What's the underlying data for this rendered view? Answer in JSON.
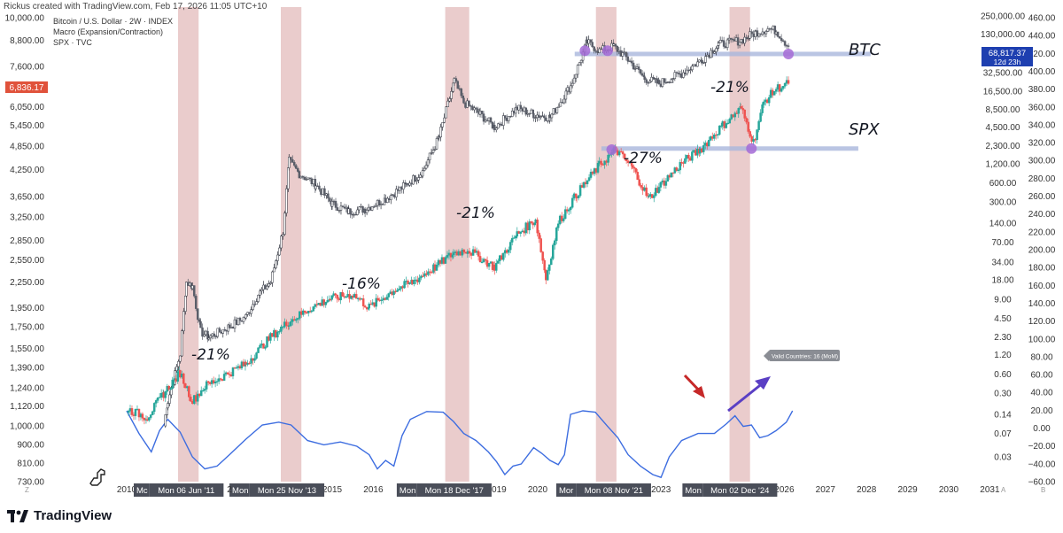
{
  "header": {
    "created_by": "Rickus created with TradingView.com, Feb 17, 2026 11:05 UTC+10"
  },
  "legend": {
    "line1": "Bitcoin / U.S. Dollar · 2W · INDEX",
    "line2": "Macro (Expansion/Contraction)",
    "line3": "SPX · TVC"
  },
  "chart_data": {
    "type": "line",
    "title": "",
    "axes": {
      "left": {
        "scale": "log",
        "ticks": [
          "10,000.00",
          "8,800.00",
          "7,600.00",
          "6,050.00",
          "5,450.00",
          "4,850.00",
          "4,250.00",
          "3,650.00",
          "3,250.00",
          "2,850.00",
          "2,550.00",
          "2,250.00",
          "1,950.00",
          "1,750.00",
          "1,550.00",
          "1,390.00",
          "1,240.00",
          "1,120.00",
          "1,000.00",
          "900.00",
          "810.00",
          "730.00"
        ],
        "current_value_label": "6,836.17"
      },
      "right_btc": {
        "scale": "log",
        "ticks": [
          "250,000.00",
          "130,000.00",
          "32,500.00",
          "16,500.00",
          "8,500.00",
          "4,500.00",
          "2,300.00",
          "1,200.00",
          "600.00",
          "300.00",
          "140.00",
          "70.00",
          "34.00",
          "18.00",
          "9.00",
          "4.50",
          "2.30",
          "1.20",
          "0.60",
          "0.30",
          "0.14",
          "0.07",
          "0.03"
        ],
        "current_value_label": "68,817.37",
        "countdown_label": "12d 23h"
      },
      "right_macro": {
        "ticks": [
          "460.00",
          "440.00",
          "420.00",
          "400.00",
          "380.00",
          "360.00",
          "340.00",
          "320.00",
          "300.00",
          "280.00",
          "260.00",
          "240.00",
          "220.00",
          "200.00",
          "180.00",
          "160.00",
          "140.00",
          "120.00",
          "100.00",
          "80.00",
          "60.00",
          "40.00",
          "20.00",
          "0.00",
          "−20.00",
          "−40.00",
          "−60.00"
        ]
      },
      "x": {
        "ticks": [
          "2010",
          "2015",
          "2016",
          "2019",
          "2020",
          "2023",
          "2026",
          "2027",
          "2028",
          "2029",
          "2030",
          "2031"
        ],
        "highlighted_dates": [
          "Mon 06 Jun '11",
          "Mon 25 Nov '13",
          "Mon 18 Dec '17",
          "Mon 08 Nov '21",
          "Mon 02 Dec '24"
        ],
        "truncated_prefixes": [
          "Mc",
          "Mon",
          "Mon",
          "Mor",
          "Mon"
        ],
        "truncated_tail": "2"
      }
    },
    "contraction_bands": [
      {
        "from": "2011-04",
        "to": "2011-10"
      },
      {
        "from": "2013-10",
        "to": "2014-04"
      },
      {
        "from": "2017-10",
        "to": "2018-05"
      },
      {
        "from": "2021-06",
        "to": "2021-12"
      },
      {
        "from": "2024-09",
        "to": "2025-03"
      }
    ],
    "series": [
      {
        "name": "BTC",
        "color": "#2a2e39",
        "kind": "candles",
        "points": [
          [
            2010.9,
            1000
          ],
          [
            2011.0,
            1150
          ],
          [
            2011.3,
            1500
          ],
          [
            2011.45,
            2250
          ],
          [
            2011.6,
            2200
          ],
          [
            2011.8,
            1700
          ],
          [
            2012.0,
            1650
          ],
          [
            2012.5,
            1750
          ],
          [
            2012.9,
            1850
          ],
          [
            2013.2,
            2100
          ],
          [
            2013.5,
            2250
          ],
          [
            2013.8,
            3000
          ],
          [
            2013.95,
            4450
          ],
          [
            2014.2,
            4150
          ],
          [
            2014.6,
            3900
          ],
          [
            2015.0,
            3500
          ],
          [
            2015.4,
            3350
          ],
          [
            2015.8,
            3400
          ],
          [
            2016.3,
            3600
          ],
          [
            2016.8,
            3900
          ],
          [
            2017.2,
            4200
          ],
          [
            2017.6,
            5100
          ],
          [
            2017.97,
            7000
          ],
          [
            2018.2,
            6200
          ],
          [
            2018.6,
            5800
          ],
          [
            2018.95,
            5400
          ],
          [
            2019.5,
            6000
          ],
          [
            2019.9,
            5800
          ],
          [
            2020.3,
            5700
          ],
          [
            2020.8,
            6800
          ],
          [
            2021.2,
            8700
          ],
          [
            2021.5,
            8300
          ],
          [
            2021.85,
            8500
          ],
          [
            2022.2,
            7900
          ],
          [
            2022.6,
            7100
          ],
          [
            2022.95,
            6900
          ],
          [
            2023.5,
            7300
          ],
          [
            2024.0,
            7900
          ],
          [
            2024.4,
            8600
          ],
          [
            2024.95,
            8800
          ],
          [
            2025.3,
            9200
          ],
          [
            2025.6,
            9400
          ],
          [
            2025.8,
            9300
          ],
          [
            2026.1,
            8500
          ]
        ]
      },
      {
        "name": "SPX",
        "color": "#26a69a",
        "kind": "candles",
        "points": [
          [
            2010.0,
            1100
          ],
          [
            2010.5,
            1050
          ],
          [
            2010.9,
            1200
          ],
          [
            2011.3,
            1350
          ],
          [
            2011.6,
            1150
          ],
          [
            2011.9,
            1250
          ],
          [
            2012.5,
            1350
          ],
          [
            2012.9,
            1420
          ],
          [
            2013.5,
            1650
          ],
          [
            2013.95,
            1800
          ],
          [
            2014.5,
            1950
          ],
          [
            2014.95,
            2050
          ],
          [
            2015.5,
            2100
          ],
          [
            2015.9,
            1950
          ],
          [
            2016.5,
            2150
          ],
          [
            2016.95,
            2250
          ],
          [
            2017.5,
            2450
          ],
          [
            2017.95,
            2650
          ],
          [
            2018.3,
            2700
          ],
          [
            2018.95,
            2450
          ],
          [
            2019.5,
            2950
          ],
          [
            2019.95,
            3200
          ],
          [
            2020.2,
            2300
          ],
          [
            2020.5,
            3150
          ],
          [
            2020.95,
            3700
          ],
          [
            2021.5,
            4350
          ],
          [
            2021.9,
            4750
          ],
          [
            2022.3,
            4300
          ],
          [
            2022.7,
            3600
          ],
          [
            2022.95,
            3850
          ],
          [
            2023.5,
            4400
          ],
          [
            2023.95,
            4750
          ],
          [
            2024.5,
            5450
          ],
          [
            2024.95,
            6000
          ],
          [
            2025.25,
            4950
          ],
          [
            2025.5,
            6200
          ],
          [
            2025.8,
            6700
          ],
          [
            2026.1,
            6900
          ]
        ]
      },
      {
        "name": "Macro (Expansion/Contraction)",
        "color": "#3d6de0",
        "kind": "line",
        "points": [
          [
            2010.0,
            100
          ],
          [
            2010.3,
            68
          ],
          [
            2010.6,
            42
          ],
          [
            2010.8,
            72
          ],
          [
            2011.0,
            88
          ],
          [
            2011.3,
            70
          ],
          [
            2011.6,
            35
          ],
          [
            2011.9,
            18
          ],
          [
            2012.2,
            22
          ],
          [
            2012.5,
            38
          ],
          [
            2012.9,
            60
          ],
          [
            2013.3,
            80
          ],
          [
            2013.7,
            84
          ],
          [
            2014.0,
            80
          ],
          [
            2014.4,
            58
          ],
          [
            2014.8,
            52
          ],
          [
            2015.2,
            56
          ],
          [
            2015.6,
            50
          ],
          [
            2015.9,
            38
          ],
          [
            2016.1,
            18
          ],
          [
            2016.3,
            30
          ],
          [
            2016.5,
            22
          ],
          [
            2016.7,
            65
          ],
          [
            2016.9,
            88
          ],
          [
            2017.3,
            99
          ],
          [
            2017.7,
            98
          ],
          [
            2017.95,
            85
          ],
          [
            2018.2,
            68
          ],
          [
            2018.5,
            58
          ],
          [
            2018.8,
            42
          ],
          [
            2019.0,
            28
          ],
          [
            2019.2,
            10
          ],
          [
            2019.4,
            22
          ],
          [
            2019.6,
            25
          ],
          [
            2019.9,
            48
          ],
          [
            2020.1,
            40
          ],
          [
            2020.3,
            30
          ],
          [
            2020.5,
            24
          ],
          [
            2020.65,
            38
          ],
          [
            2020.8,
            95
          ],
          [
            2021.1,
            100
          ],
          [
            2021.4,
            98
          ],
          [
            2021.7,
            78
          ],
          [
            2021.95,
            62
          ],
          [
            2022.2,
            38
          ],
          [
            2022.5,
            22
          ],
          [
            2022.8,
            10
          ],
          [
            2023.0,
            6
          ],
          [
            2023.2,
            35
          ],
          [
            2023.5,
            58
          ],
          [
            2023.9,
            68
          ],
          [
            2024.3,
            68
          ],
          [
            2024.6,
            82
          ],
          [
            2024.8,
            93
          ],
          [
            2025.0,
            78
          ],
          [
            2025.2,
            80
          ],
          [
            2025.4,
            62
          ],
          [
            2025.6,
            65
          ],
          [
            2025.8,
            72
          ],
          [
            2026.05,
            84
          ],
          [
            2026.2,
            100
          ]
        ]
      }
    ],
    "annotations": {
      "btc_label": "BTC",
      "spx_label": "SPX",
      "drawdowns": [
        "-21%",
        "-16%",
        "-21%",
        "-27%",
        "-21%"
      ],
      "macro_tooltip": "Valid Countries: 16 (MoM)"
    },
    "grid": false,
    "legend_position": "top-left"
  },
  "footer": {
    "brand": "TradingView"
  },
  "colors": {
    "band": "#d9a3a3",
    "macro_line": "#3d6de0",
    "support_line": "#a9b7dc",
    "marker": "#a56bd6",
    "arrow_red": "#c62828",
    "arrow_purple": "#5a3fc4",
    "price_tag_red": "#e0523b",
    "price_tag_blue": "#1e3fb0"
  }
}
